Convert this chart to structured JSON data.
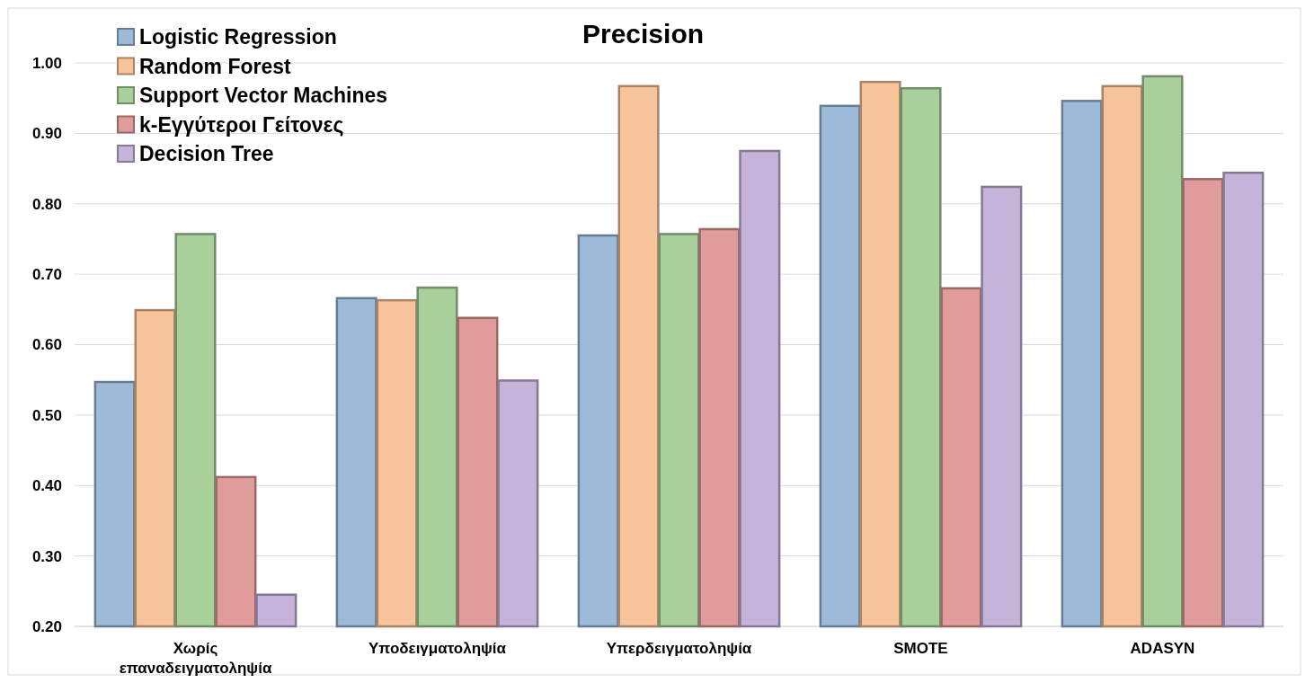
{
  "chart_data": {
    "type": "bar",
    "title": "Precision",
    "categories": [
      "Χωρίς επαναδειγματοληψία",
      "Υποδειγματοληψία",
      "Υπερδειγματοληψία",
      "SMOTE",
      "ADASYN"
    ],
    "series": [
      {
        "name": "Logistic Regression",
        "color": "#9dbbd9",
        "values": [
          0.547,
          0.666,
          0.755,
          0.939,
          0.946
        ]
      },
      {
        "name": "Random Forest",
        "color": "#f7c39a",
        "values": [
          0.649,
          0.663,
          0.967,
          0.973,
          0.967
        ]
      },
      {
        "name": "Support Vector Machines",
        "color": "#a9d09a",
        "values": [
          0.757,
          0.681,
          0.757,
          0.964,
          0.981
        ]
      },
      {
        "name": "k-Εγγύτεροι Γείτονες",
        "color": "#e09c9a",
        "values": [
          0.412,
          0.638,
          0.764,
          0.68,
          0.835
        ]
      },
      {
        "name": "Decision Tree",
        "color": "#c5b3da",
        "values": [
          0.245,
          0.549,
          0.875,
          0.824,
          0.844
        ]
      }
    ],
    "ylim": [
      0.2,
      1.0
    ],
    "yticks": [
      {
        "value": 0.2,
        "label": "0.20"
      },
      {
        "value": 0.3,
        "label": "0.30"
      },
      {
        "value": 0.4,
        "label": "0.40"
      },
      {
        "value": 0.5,
        "label": "0.50"
      },
      {
        "value": 0.6,
        "label": "0.60"
      },
      {
        "value": 0.7,
        "label": "0.70"
      },
      {
        "value": 0.8,
        "label": "0.80"
      },
      {
        "value": 0.9,
        "label": "0.90"
      },
      {
        "value": 1.0,
        "label": "1.00"
      }
    ],
    "grid": "y",
    "legend": "top left"
  }
}
